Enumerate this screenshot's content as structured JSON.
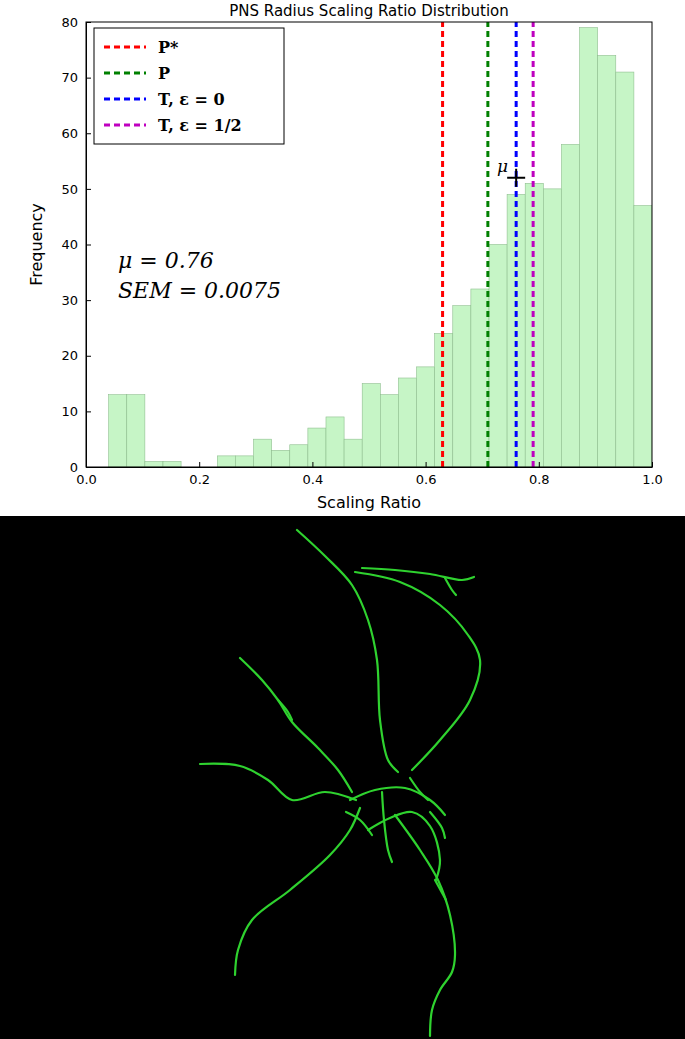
{
  "chart_data": {
    "type": "histogram",
    "title": "PNS Radius Scaling Ratio Distribution",
    "x_label": "Scaling Ratio",
    "y_label": "Frequency",
    "bins": [
      0.04,
      0.072,
      0.104,
      0.136,
      0.168,
      0.2,
      0.232,
      0.264,
      0.296,
      0.328,
      0.36,
      0.392,
      0.424,
      0.456,
      0.488,
      0.52,
      0.552,
      0.584,
      0.616,
      0.648,
      0.68,
      0.712,
      0.744,
      0.776,
      0.808,
      0.84,
      0.872,
      0.904,
      0.936,
      0.968,
      1.0
    ],
    "values": [
      13,
      13,
      1,
      1,
      0,
      0,
      2,
      2,
      5,
      3,
      4,
      7,
      9,
      5,
      15,
      13,
      16,
      18,
      24,
      29,
      32,
      40,
      49,
      51,
      50,
      58,
      79,
      74,
      71,
      47
    ],
    "color": "#c6f5c6",
    "vlines": [
      {
        "name": "P*",
        "x": 0.63,
        "color": "#ff0000",
        "line_style": "dashed"
      },
      {
        "name": "P",
        "x": 0.71,
        "color": "#008000",
        "line_style": "dashed"
      },
      {
        "name": "T, ε = 0",
        "x": 0.76,
        "color": "#0000ff",
        "line_style": "dashed"
      },
      {
        "name": "T, ε = 1/2",
        "x": 0.79,
        "color": "#bf00bf",
        "line_style": "dashed"
      }
    ],
    "mean_marker": {
      "label": "μ",
      "x": 0.76,
      "y": 52
    },
    "annotations": [
      "μ = 0.76",
      "SEM = 0.0075"
    ],
    "xlim": [
      0,
      1
    ],
    "xticks": [
      {
        "value": 0,
        "label": "0.0"
      },
      {
        "value": 0.2,
        "label": "0.2"
      },
      {
        "value": 0.4,
        "label": "0.4"
      },
      {
        "value": 0.6,
        "label": "0.6"
      },
      {
        "value": 0.8,
        "label": "0.8"
      },
      {
        "value": 1,
        "label": "1.0"
      }
    ],
    "ylim": [
      0,
      80
    ],
    "yticks": [
      0,
      10,
      20,
      30,
      40,
      50,
      60,
      70,
      80
    ],
    "legend": "upper left",
    "grid": false
  }
}
